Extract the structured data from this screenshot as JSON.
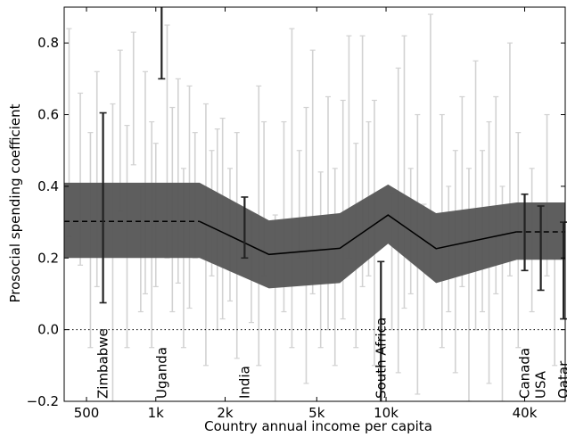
{
  "chart_data": {
    "type": "line",
    "xlabel": "Country annual income per capita",
    "ylabel": "Prosocial spending coefficient",
    "x_scale": "log",
    "xlim": [
      400,
      60000
    ],
    "ylim": [
      -0.2,
      0.9
    ],
    "x_ticks": [
      {
        "value": 500,
        "label": "500"
      },
      {
        "value": 1000,
        "label": "1k"
      },
      {
        "value": 2000,
        "label": "2k"
      },
      {
        "value": 5000,
        "label": "5k"
      },
      {
        "value": 10000,
        "label": "10k"
      },
      {
        "value": 40000,
        "label": "40k"
      }
    ],
    "y_ticks": [
      {
        "value": 0.8,
        "label": "0.8"
      },
      {
        "value": 0.6,
        "label": "0.6"
      },
      {
        "value": 0.4,
        "label": "0.4"
      },
      {
        "value": 0.2,
        "label": "0.2"
      },
      {
        "value": 0.0,
        "label": "0.0"
      },
      {
        "value": -0.2,
        "label": "−0.2"
      }
    ],
    "reference_line": {
      "y": 0.0,
      "style": "dotted"
    },
    "fit": {
      "x": [
        1550,
        3100,
        6300,
        10200,
        16500,
        37000
      ],
      "y": [
        0.302,
        0.21,
        0.227,
        0.32,
        0.226,
        0.273
      ],
      "lower": [
        0.2,
        0.115,
        0.13,
        0.24,
        0.13,
        0.195
      ],
      "upper": [
        0.41,
        0.305,
        0.325,
        0.405,
        0.325,
        0.355
      ],
      "extrapolation_left": {
        "y": 0.302,
        "lower": 0.2,
        "upper": 0.41
      },
      "extrapolation_right": {
        "y": 0.273,
        "lower": 0.195,
        "upper": 0.355
      }
    },
    "highlighted_countries": [
      {
        "name": "Zimbabwe",
        "x": 590,
        "low": 0.075,
        "high": 0.605
      },
      {
        "name": "Uganda",
        "x": 1060,
        "low": 0.7,
        "high": 0.95
      },
      {
        "name": "India",
        "x": 2430,
        "low": 0.2,
        "high": 0.37
      },
      {
        "name": "South Africa",
        "x": 9500,
        "low": -0.23,
        "high": 0.19
      },
      {
        "name": "Canada",
        "x": 40000,
        "low": 0.165,
        "high": 0.378
      },
      {
        "name": "USA",
        "x": 47000,
        "low": 0.11,
        "high": 0.345
      },
      {
        "name": "Qatar",
        "x": 59000,
        "low": 0.03,
        "high": 0.3
      }
    ],
    "other_countries": [
      {
        "x": 420,
        "low": 0.26,
        "high": 0.84
      },
      {
        "x": 470,
        "low": 0.18,
        "high": 0.66
      },
      {
        "x": 520,
        "low": -0.05,
        "high": 0.55
      },
      {
        "x": 555,
        "low": 0.12,
        "high": 0.72
      },
      {
        "x": 650,
        "low": -0.22,
        "high": 0.63
      },
      {
        "x": 700,
        "low": 0.33,
        "high": 0.78
      },
      {
        "x": 750,
        "low": -0.05,
        "high": 0.57
      },
      {
        "x": 800,
        "low": 0.46,
        "high": 0.83
      },
      {
        "x": 860,
        "low": 0.05,
        "high": 0.4
      },
      {
        "x": 900,
        "low": 0.1,
        "high": 0.72
      },
      {
        "x": 960,
        "low": -0.05,
        "high": 0.58
      },
      {
        "x": 1000,
        "low": 0.12,
        "high": 0.52
      },
      {
        "x": 1120,
        "low": 0.2,
        "high": 0.85
      },
      {
        "x": 1180,
        "low": 0.05,
        "high": 0.62
      },
      {
        "x": 1250,
        "low": 0.13,
        "high": 0.7
      },
      {
        "x": 1320,
        "low": -0.05,
        "high": 0.45
      },
      {
        "x": 1400,
        "low": 0.06,
        "high": 0.68
      },
      {
        "x": 1480,
        "low": 0.2,
        "high": 0.55
      },
      {
        "x": 1650,
        "low": -0.1,
        "high": 0.63
      },
      {
        "x": 1750,
        "low": 0.15,
        "high": 0.5
      },
      {
        "x": 1850,
        "low": 0.0,
        "high": 0.56
      },
      {
        "x": 1950,
        "low": 0.03,
        "high": 0.59
      },
      {
        "x": 2100,
        "low": 0.08,
        "high": 0.45
      },
      {
        "x": 2250,
        "low": -0.08,
        "high": 0.55
      },
      {
        "x": 2600,
        "low": 0.02,
        "high": 0.32
      },
      {
        "x": 2800,
        "low": -0.1,
        "high": 0.68
      },
      {
        "x": 2950,
        "low": 0.15,
        "high": 0.58
      },
      {
        "x": 3300,
        "low": -0.2,
        "high": 0.32
      },
      {
        "x": 3600,
        "low": 0.05,
        "high": 0.58
      },
      {
        "x": 3900,
        "low": -0.05,
        "high": 0.84
      },
      {
        "x": 4200,
        "low": 0.2,
        "high": 0.5
      },
      {
        "x": 4500,
        "low": -0.15,
        "high": 0.62
      },
      {
        "x": 4800,
        "low": 0.1,
        "high": 0.78
      },
      {
        "x": 5200,
        "low": -0.05,
        "high": 0.44
      },
      {
        "x": 5600,
        "low": 0.0,
        "high": 0.65
      },
      {
        "x": 6000,
        "low": -0.1,
        "high": 0.45
      },
      {
        "x": 6500,
        "low": 0.03,
        "high": 0.64
      },
      {
        "x": 6900,
        "low": 0.2,
        "high": 0.82
      },
      {
        "x": 7400,
        "low": -0.05,
        "high": 0.52
      },
      {
        "x": 7900,
        "low": 0.12,
        "high": 0.82
      },
      {
        "x": 8400,
        "low": 0.15,
        "high": 0.58
      },
      {
        "x": 8900,
        "low": -0.1,
        "high": 0.64
      },
      {
        "x": 10600,
        "low": 0.0,
        "high": 0.38
      },
      {
        "x": 11300,
        "low": -0.12,
        "high": 0.73
      },
      {
        "x": 12000,
        "low": 0.06,
        "high": 0.82
      },
      {
        "x": 12800,
        "low": 0.1,
        "high": 0.45
      },
      {
        "x": 13700,
        "low": -0.18,
        "high": 0.6
      },
      {
        "x": 14600,
        "low": 0.0,
        "high": 0.35
      },
      {
        "x": 15600,
        "low": 0.15,
        "high": 0.88
      },
      {
        "x": 17500,
        "low": -0.05,
        "high": 0.6
      },
      {
        "x": 18700,
        "low": 0.05,
        "high": 0.4
      },
      {
        "x": 20000,
        "low": -0.12,
        "high": 0.5
      },
      {
        "x": 21400,
        "low": 0.12,
        "high": 0.65
      },
      {
        "x": 22900,
        "low": -0.2,
        "high": 0.45
      },
      {
        "x": 24500,
        "low": 0.0,
        "high": 0.75
      },
      {
        "x": 26200,
        "low": 0.05,
        "high": 0.5
      },
      {
        "x": 28000,
        "low": -0.15,
        "high": 0.58
      },
      {
        "x": 30000,
        "low": 0.1,
        "high": 0.65
      },
      {
        "x": 32000,
        "low": -0.2,
        "high": 0.4
      },
      {
        "x": 34500,
        "low": 0.15,
        "high": 0.8
      },
      {
        "x": 37500,
        "low": -0.05,
        "high": 0.55
      },
      {
        "x": 43000,
        "low": 0.05,
        "high": 0.45
      },
      {
        "x": 50000,
        "low": 0.15,
        "high": 0.6
      },
      {
        "x": 54000,
        "low": -0.1,
        "high": 0.2
      }
    ]
  }
}
